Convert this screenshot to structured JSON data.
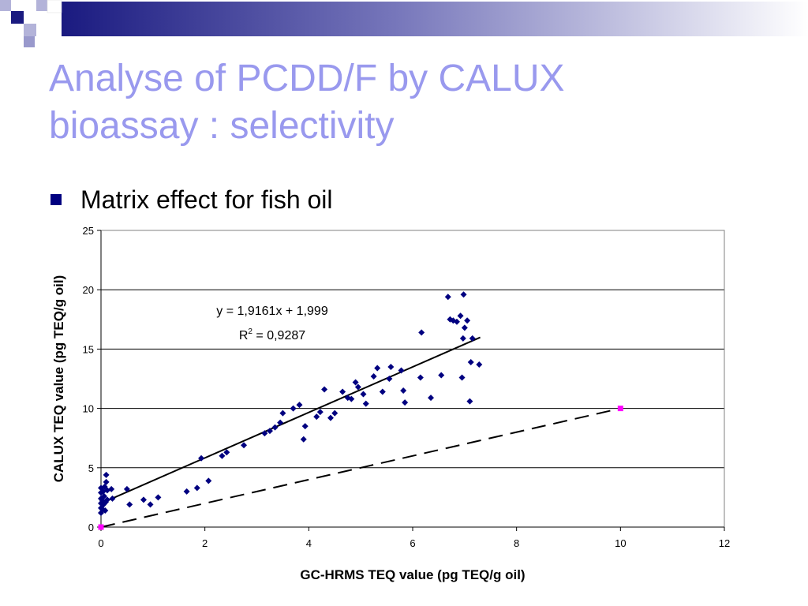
{
  "slide": {
    "title_lines": [
      "Analyse of PCDD/F by CALUX",
      "bioassay : selectivity"
    ],
    "bullet": "Matrix effect for fish oil"
  },
  "colors": {
    "title": "#9999ee",
    "bullet_marker": "#000080",
    "points": "#000080",
    "reference_points": "#ff00ff",
    "banner_dark": "#1a1a80",
    "banner_light": "#9999cc"
  },
  "chart_data": {
    "type": "scatter",
    "title": "",
    "xlabel": "GC-HRMS TEQ value (pg TEQ/g oil)",
    "ylabel": "CALUX TEQ value (pg TEQ/g oil)",
    "xlim": [
      0,
      12
    ],
    "ylim": [
      0,
      25
    ],
    "xticks": [
      0,
      2,
      4,
      6,
      8,
      10,
      12
    ],
    "yticks": [
      0,
      5,
      10,
      15,
      20,
      25
    ],
    "grid": "horizontal",
    "legend": "none",
    "series": [
      {
        "marker": "diamond",
        "points": [
          [
            0.0,
            1.2
          ],
          [
            0.0,
            1.6
          ],
          [
            0.0,
            2.0
          ],
          [
            0.0,
            2.4
          ],
          [
            0.0,
            2.9
          ],
          [
            0.0,
            3.3
          ],
          [
            0.03,
            1.5
          ],
          [
            0.03,
            2.2
          ],
          [
            0.04,
            3.0
          ],
          [
            0.05,
            1.9
          ],
          [
            0.06,
            2.6
          ],
          [
            0.07,
            3.4
          ],
          [
            0.08,
            1.4
          ],
          [
            0.09,
            2.1
          ],
          [
            0.1,
            4.4
          ],
          [
            0.1,
            3.8
          ],
          [
            0.12,
            2.3
          ],
          [
            0.12,
            3.1
          ],
          [
            0.2,
            3.2
          ],
          [
            0.22,
            2.4
          ],
          [
            0.5,
            3.2
          ],
          [
            0.55,
            1.9
          ],
          [
            0.82,
            2.3
          ],
          [
            0.95,
            1.9
          ],
          [
            1.1,
            2.5
          ],
          [
            1.65,
            3.0
          ],
          [
            1.85,
            3.3
          ],
          [
            1.93,
            5.8
          ],
          [
            2.07,
            3.9
          ],
          [
            2.33,
            6.0
          ],
          [
            2.42,
            6.3
          ],
          [
            2.75,
            6.9
          ],
          [
            3.15,
            7.9
          ],
          [
            3.25,
            8.1
          ],
          [
            3.35,
            8.4
          ],
          [
            3.45,
            8.8
          ],
          [
            3.5,
            9.6
          ],
          [
            3.7,
            10.0
          ],
          [
            3.82,
            10.3
          ],
          [
            3.9,
            7.4
          ],
          [
            3.93,
            8.5
          ],
          [
            4.15,
            9.3
          ],
          [
            4.22,
            9.7
          ],
          [
            4.3,
            11.6
          ],
          [
            4.42,
            9.2
          ],
          [
            4.5,
            9.6
          ],
          [
            4.65,
            11.4
          ],
          [
            4.75,
            10.9
          ],
          [
            4.82,
            10.8
          ],
          [
            4.9,
            12.2
          ],
          [
            4.95,
            11.8
          ],
          [
            5.05,
            11.2
          ],
          [
            5.1,
            10.4
          ],
          [
            5.25,
            12.7
          ],
          [
            5.32,
            13.4
          ],
          [
            5.42,
            11.4
          ],
          [
            5.55,
            12.5
          ],
          [
            5.58,
            13.5
          ],
          [
            5.78,
            13.2
          ],
          [
            5.82,
            11.5
          ],
          [
            5.85,
            10.5
          ],
          [
            6.15,
            12.6
          ],
          [
            6.17,
            16.4
          ],
          [
            6.35,
            10.9
          ],
          [
            6.55,
            12.8
          ],
          [
            6.68,
            19.4
          ],
          [
            6.72,
            17.5
          ],
          [
            6.78,
            17.4
          ],
          [
            6.85,
            17.3
          ],
          [
            6.92,
            17.8
          ],
          [
            6.95,
            12.6
          ],
          [
            6.97,
            15.9
          ],
          [
            6.98,
            19.6
          ],
          [
            7.0,
            16.8
          ],
          [
            7.05,
            17.4
          ],
          [
            7.1,
            10.6
          ],
          [
            7.12,
            13.9
          ],
          [
            7.15,
            15.9
          ],
          [
            7.28,
            13.7
          ]
        ]
      },
      {
        "marker": "square",
        "points": [
          [
            0.0,
            0.0
          ],
          [
            10.0,
            10.0
          ]
        ]
      }
    ],
    "fits": [
      {
        "style": "solid",
        "x_range": [
          0,
          7.3
        ],
        "slope": 1.9161,
        "intercept": 1.999
      },
      {
        "style": "dashed",
        "x_range": [
          0,
          10
        ],
        "slope": 1.0,
        "intercept": 0.0
      }
    ],
    "annotations": {
      "equation": "y = 1,9161x + 1,999",
      "r_squared_base": "R",
      "r_squared_sup": "2",
      "r_squared_value": " = 0,9287"
    }
  }
}
